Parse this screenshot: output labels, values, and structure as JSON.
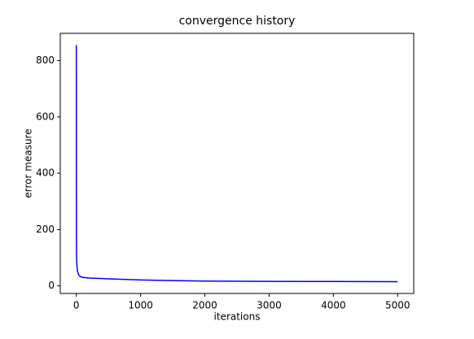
{
  "chart_data": {
    "type": "line",
    "title": "convergence history",
    "x_label": "iterations",
    "y_label": "error measure",
    "x": [
      0,
      1,
      2,
      5,
      10,
      20,
      40,
      60,
      100,
      200,
      500,
      1000,
      1500,
      2000,
      3000,
      4000,
      5000
    ],
    "values": [
      855,
      300,
      130,
      90,
      70,
      50,
      38,
      33,
      30,
      28,
      25,
      21,
      19,
      17,
      16,
      15.5,
      15
    ],
    "color": "#0000ff",
    "xlim": [
      -250,
      5250
    ],
    "xticks": [
      0,
      1000,
      2000,
      3000,
      4000,
      5000
    ],
    "ylim": [
      -27,
      897
    ],
    "yticks": [
      0,
      200,
      400,
      600,
      800
    ],
    "grid": false
  }
}
